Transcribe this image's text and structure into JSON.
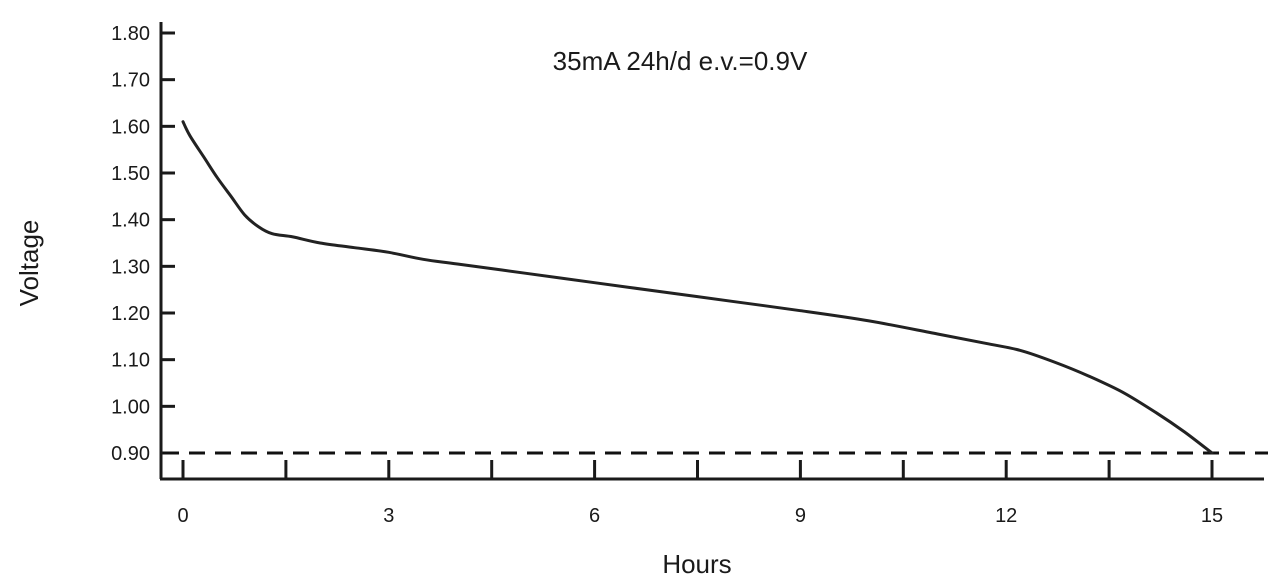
{
  "chart_data": {
    "type": "line",
    "title": "35mA 24h/d e.v.=0.9V",
    "xlabel": "Hours",
    "ylabel": "Voltage",
    "xlim": [
      0,
      15
    ],
    "ylim": [
      0.9,
      1.8
    ],
    "x_ticks": [
      0,
      3,
      6,
      9,
      12,
      15
    ],
    "x_tick_labels": [
      "0",
      "3",
      "6",
      "9",
      "12",
      "15"
    ],
    "x_minor_ticks": [
      1.5,
      4.5,
      7.5,
      10.5,
      13.5
    ],
    "y_ticks": [
      0.9,
      1.0,
      1.1,
      1.2,
      1.3,
      1.4,
      1.5,
      1.6,
      1.7,
      1.8
    ],
    "y_tick_labels": [
      "0.90",
      "1.00",
      "1.10",
      "1.20",
      "1.30",
      "1.40",
      "1.50",
      "1.60",
      "1.70",
      "1.80"
    ],
    "grid": false,
    "reference_line": {
      "y": 0.9,
      "style": "dashed"
    },
    "series": [
      {
        "color": "#222222",
        "x": [
          0,
          0.1,
          0.3,
          0.5,
          0.7,
          0.9,
          1.1,
          1.3,
          1.6,
          2.0,
          2.5,
          3.0,
          3.5,
          4.0,
          5.0,
          6.0,
          7.0,
          8.0,
          9.0,
          10.0,
          11.0,
          11.7,
          12.2,
          12.7,
          13.2,
          13.7,
          14.2,
          14.6,
          15.0
        ],
        "y": [
          1.61,
          1.58,
          1.535,
          1.49,
          1.45,
          1.41,
          1.385,
          1.37,
          1.363,
          1.35,
          1.34,
          1.33,
          1.315,
          1.305,
          1.285,
          1.265,
          1.245,
          1.225,
          1.205,
          1.183,
          1.155,
          1.135,
          1.12,
          1.095,
          1.065,
          1.03,
          0.985,
          0.945,
          0.9
        ]
      }
    ]
  }
}
